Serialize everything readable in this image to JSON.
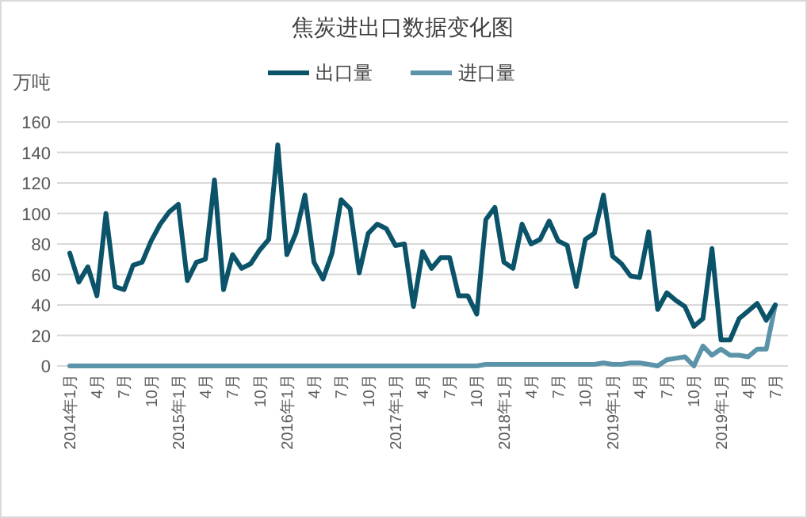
{
  "chart_data": {
    "type": "line",
    "title": "焦炭进出口数据变化图",
    "ylabel": "万吨",
    "categories": [
      "2014年1月",
      null,
      null,
      "4月",
      null,
      null,
      "7月",
      null,
      null,
      "10月",
      null,
      null,
      "2015年1月",
      null,
      null,
      "4月",
      null,
      null,
      "7月",
      null,
      null,
      "10月",
      null,
      null,
      "2016年1月",
      null,
      null,
      "4月",
      null,
      null,
      "7月",
      null,
      null,
      "10月",
      null,
      null,
      "2017年1月",
      null,
      null,
      "4月",
      null,
      null,
      "7月",
      null,
      null,
      "10月",
      null,
      null,
      "2018年1月",
      null,
      null,
      "4月",
      null,
      null,
      "7月",
      null,
      null,
      "10月",
      null,
      null,
      "2019年1月",
      null,
      null,
      "4月",
      null,
      null,
      "7月",
      null,
      null,
      "10月",
      null,
      null,
      "2019年1月",
      null,
      null,
      "4月",
      null,
      null,
      "7月"
    ],
    "series": [
      {
        "name": "出口量",
        "color": "#0b5369",
        "values": [
          74,
          55,
          65,
          46,
          100,
          52,
          50,
          66,
          68,
          82,
          93,
          101,
          106,
          56,
          68,
          70,
          122,
          50,
          73,
          64,
          67,
          76,
          83,
          145,
          73,
          87,
          112,
          68,
          57,
          74,
          109,
          103,
          61,
          87,
          93,
          90,
          79,
          80,
          39,
          75,
          64,
          71,
          71,
          46,
          46,
          34,
          96,
          104,
          68,
          64,
          93,
          80,
          83,
          95,
          82,
          79,
          52,
          83,
          87,
          112,
          72,
          67,
          59,
          58,
          88,
          37,
          48,
          43,
          39,
          26,
          31,
          77,
          17,
          17,
          31,
          36,
          41,
          30,
          40
        ]
      },
      {
        "name": "进口量",
        "color": "#5b93a8",
        "values": [
          0,
          0,
          0,
          0,
          0,
          0,
          0,
          0,
          0,
          0,
          0,
          0,
          0,
          0,
          0,
          0,
          0,
          0,
          0,
          0,
          0,
          0,
          0,
          0,
          0,
          0,
          0,
          0,
          0,
          0,
          0,
          0,
          0,
          0,
          0,
          0,
          0,
          0,
          0,
          0,
          0,
          0,
          0,
          0,
          0,
          0,
          1,
          1,
          1,
          1,
          1,
          1,
          1,
          1,
          1,
          1,
          1,
          1,
          1,
          2,
          1,
          1,
          2,
          2,
          1,
          0,
          4,
          5,
          6,
          0,
          13,
          7,
          11,
          7,
          7,
          6,
          11,
          11,
          40
        ]
      }
    ],
    "ylim": [
      0,
      160
    ],
    "yticks": [
      0,
      20,
      40,
      60,
      80,
      100,
      120,
      140,
      160
    ],
    "grid": "y",
    "legend": "top",
    "marker": "none",
    "line_style": "solid"
  }
}
